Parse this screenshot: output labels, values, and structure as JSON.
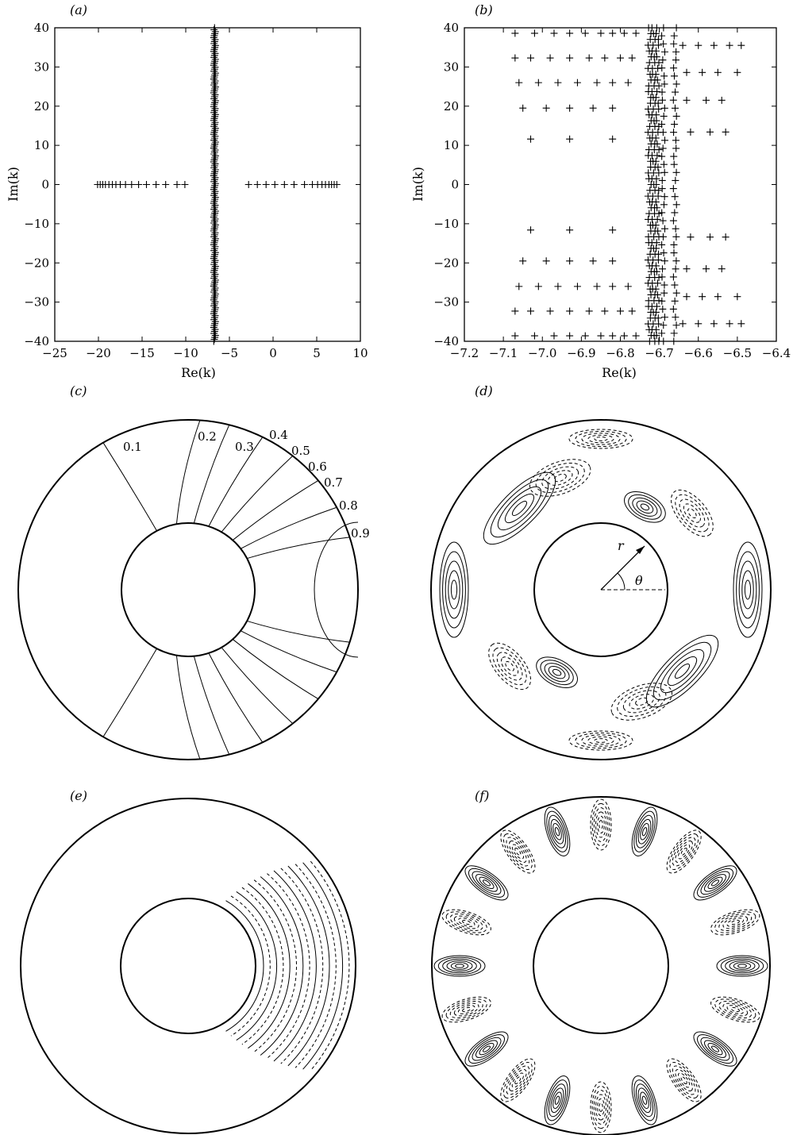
{
  "panels": {
    "a": {
      "label": "(a)"
    },
    "b": {
      "label": "(b)"
    },
    "c": {
      "label": "(c)",
      "contour_labels": [
        "0.1",
        "0.2",
        "0.3",
        "0.4",
        "0.5",
        "0.6",
        "0.7",
        "0.8",
        "0.9"
      ]
    },
    "d": {
      "label": "(d)",
      "r_label": "r",
      "theta_label": "θ"
    },
    "e": {
      "label": "(e)"
    },
    "f": {
      "label": "(f)"
    }
  },
  "chart_data": [
    {
      "panel": "a",
      "type": "scatter",
      "xlabel": "Re(k)",
      "ylabel": "Im(k)",
      "xlim": [
        -25,
        10
      ],
      "ylim": [
        -40,
        40
      ],
      "xticks": [
        "−25",
        "−20",
        "−15",
        "−10",
        "−5",
        "0",
        "5",
        "10"
      ],
      "yticks": [
        "−40",
        "−30",
        "−20",
        "−10",
        "0",
        "10",
        "20",
        "30",
        "40"
      ],
      "real_axis_points": {
        "x": [
          -20.1,
          -19.8,
          -19.5,
          -19.2,
          -18.8,
          -18.4,
          -18.0,
          -17.5,
          -16.9,
          -16.2,
          -15.4,
          -14.5,
          -13.4,
          -12.3,
          -11.0,
          -10.1,
          -2.8,
          -1.8,
          -0.8,
          0.2,
          1.3,
          2.4,
          3.6,
          4.5,
          5.1,
          5.6,
          6.0,
          6.4,
          6.7,
          7.0,
          7.3
        ],
        "y": 0
      },
      "imag_line_points": {
        "x_center": -6.7,
        "y_range": [
          -40,
          40
        ],
        "count": 160
      }
    },
    {
      "panel": "b",
      "type": "scatter",
      "xlabel": "Re(k)",
      "ylabel": "Im(k)",
      "xlim": [
        -7.2,
        -6.4
      ],
      "ylim": [
        -40,
        40
      ],
      "xticks": [
        "−7.2",
        "−7.1",
        "−7.0",
        "−6.9",
        "−6.8",
        "−6.7",
        "−6.6",
        "−6.5",
        "−6.4"
      ],
      "yticks": [
        "−40",
        "−30",
        "−20",
        "−10",
        "0",
        "10",
        "20",
        "30",
        "40"
      ],
      "branches": [
        {
          "x": [
            -7.07,
            -7.02,
            -6.97,
            -6.93,
            -6.89,
            -6.85,
            -6.82,
            -6.79,
            -6.76
          ],
          "y": 38.6
        },
        {
          "x": [
            -7.07,
            -7.03,
            -6.98,
            -6.93,
            -6.88,
            -6.84,
            -6.8,
            -6.77
          ],
          "y": 32.3
        },
        {
          "x": [
            -7.06,
            -7.01,
            -6.96,
            -6.91,
            -6.86,
            -6.82,
            -6.78
          ],
          "y": 26.0
        },
        {
          "x": [
            -7.05,
            -6.99,
            -6.93,
            -6.87,
            -6.82
          ],
          "y": 19.5
        },
        {
          "x": [
            -7.03,
            -6.93,
            -6.82
          ],
          "y": 11.6
        },
        {
          "x": [
            -7.03,
            -6.93,
            -6.82
          ],
          "y": -11.6
        },
        {
          "x": [
            -7.05,
            -6.99,
            -6.93,
            -6.87,
            -6.82
          ],
          "y": -19.5
        },
        {
          "x": [
            -7.06,
            -7.01,
            -6.96,
            -6.91,
            -6.86,
            -6.82,
            -6.78
          ],
          "y": -26.0
        },
        {
          "x": [
            -7.07,
            -7.03,
            -6.98,
            -6.93,
            -6.88,
            -6.84,
            -6.8,
            -6.77
          ],
          "y": -32.3
        },
        {
          "x": [
            -7.07,
            -7.02,
            -6.97,
            -6.93,
            -6.89,
            -6.85,
            -6.82,
            -6.79,
            -6.76
          ],
          "y": -38.6
        },
        {
          "x": [
            -6.64,
            -6.6,
            -6.56,
            -6.52,
            -6.49
          ],
          "y": 35.5
        },
        {
          "x": [
            -6.63,
            -6.59,
            -6.55,
            -6.5
          ],
          "y": 28.6
        },
        {
          "x": [
            -6.63,
            -6.58,
            -6.54
          ],
          "y": 21.5
        },
        {
          "x": [
            -6.62,
            -6.57,
            -6.53
          ],
          "y": 13.4
        },
        {
          "x": [
            -6.62,
            -6.57,
            -6.53
          ],
          "y": -13.4
        },
        {
          "x": [
            -6.63,
            -6.58,
            -6.54
          ],
          "y": -21.5
        },
        {
          "x": [
            -6.63,
            -6.59,
            -6.55,
            -6.5
          ],
          "y": -28.6
        },
        {
          "x": [
            -6.64,
            -6.6,
            -6.56,
            -6.52,
            -6.49
          ],
          "y": -35.5
        }
      ],
      "vertical_columns": {
        "x": [
          -6.725,
          -6.715,
          -6.705,
          -6.69,
          -6.66
        ],
        "y_range": [
          -40,
          40
        ]
      }
    }
  ]
}
